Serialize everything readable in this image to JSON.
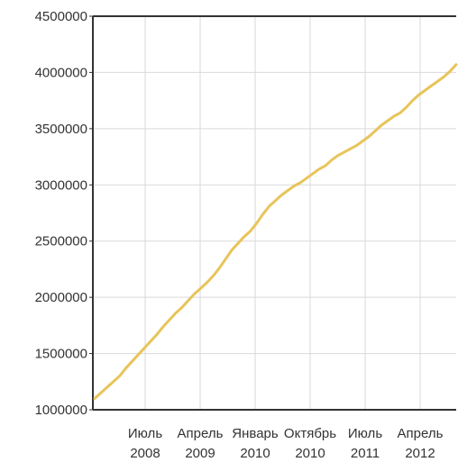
{
  "chart_data": {
    "type": "line",
    "title": "",
    "xlabel": "",
    "ylabel": "",
    "ylim": [
      1000000,
      4500000
    ],
    "grid": true,
    "legend": "none",
    "y_ticks": [
      "4500000",
      "4000000",
      "3500000",
      "3000000",
      "2500000",
      "2000000",
      "1500000",
      "1000000"
    ],
    "x_ticks": [
      {
        "line1": "Июль",
        "line2": "2008"
      },
      {
        "line1": "Апрель",
        "line2": "2009"
      },
      {
        "line1": "Январь",
        "line2": "2010"
      },
      {
        "line1": "Октябрь",
        "line2": "2010"
      },
      {
        "line1": "Июль",
        "line2": "2011"
      },
      {
        "line1": "Апрель",
        "line2": "2012"
      }
    ],
    "colors": {
      "line": "#e8c45a",
      "grid": "#d9d9d9",
      "axis": "#333333"
    },
    "series": [
      {
        "values": [
          1100000,
          1150000,
          1200000,
          1250000,
          1300000,
          1370000,
          1430000,
          1490000,
          1550000,
          1610000,
          1670000,
          1740000,
          1800000,
          1860000,
          1910000,
          1970000,
          2030000,
          2080000,
          2130000,
          2190000,
          2260000,
          2340000,
          2420000,
          2480000,
          2540000,
          2590000,
          2660000,
          2740000,
          2810000,
          2860000,
          2910000,
          2950000,
          2990000,
          3020000,
          3060000,
          3100000,
          3140000,
          3170000,
          3220000,
          3260000,
          3290000,
          3320000,
          3350000,
          3390000,
          3430000,
          3480000,
          3530000,
          3570000,
          3610000,
          3640000,
          3690000,
          3750000,
          3800000,
          3840000,
          3880000,
          3920000,
          3960000,
          4010000,
          4070000
        ]
      }
    ]
  }
}
